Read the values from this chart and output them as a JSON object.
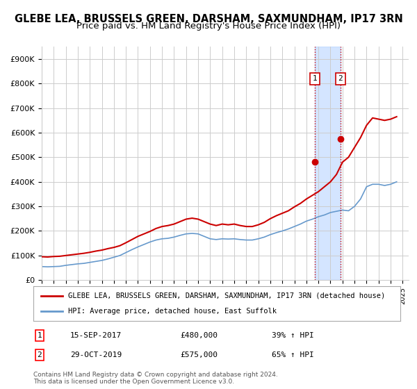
{
  "title": "GLEBE LEA, BRUSSELS GREEN, DARSHAM, SAXMUNDHAM, IP17 3RN",
  "subtitle": "Price paid vs. HM Land Registry's House Price Index (HPI)",
  "title_fontsize": 10.5,
  "subtitle_fontsize": 9.5,
  "hpi_years": [
    1995,
    1995.5,
    1996,
    1996.5,
    1997,
    1997.5,
    1998,
    1998.5,
    1999,
    1999.5,
    2000,
    2000.5,
    2001,
    2001.5,
    2002,
    2002.5,
    2003,
    2003.5,
    2004,
    2004.5,
    2005,
    2005.5,
    2006,
    2006.5,
    2007,
    2007.5,
    2008,
    2008.5,
    2009,
    2009.5,
    2010,
    2010.5,
    2011,
    2011.5,
    2012,
    2012.5,
    2013,
    2013.5,
    2014,
    2014.5,
    2015,
    2015.5,
    2016,
    2016.5,
    2017,
    2017.5,
    2018,
    2018.5,
    2019,
    2019.5,
    2020,
    2020.5,
    2021,
    2021.5,
    2022,
    2022.5,
    2023,
    2023.5,
    2024,
    2024.5
  ],
  "hpi_values": [
    55000,
    54000,
    55000,
    56000,
    60000,
    63000,
    66000,
    68000,
    72000,
    76000,
    80000,
    86000,
    93000,
    100000,
    112000,
    124000,
    135000,
    145000,
    155000,
    163000,
    168000,
    170000,
    175000,
    182000,
    188000,
    190000,
    188000,
    178000,
    168000,
    165000,
    168000,
    167000,
    168000,
    165000,
    163000,
    163000,
    168000,
    175000,
    185000,
    193000,
    200000,
    208000,
    218000,
    228000,
    240000,
    248000,
    258000,
    265000,
    275000,
    280000,
    285000,
    282000,
    300000,
    330000,
    380000,
    390000,
    390000,
    385000,
    390000,
    400000
  ],
  "price_years": [
    1995,
    1995.5,
    1996,
    1996.5,
    1997,
    1997.5,
    1998,
    1998.5,
    1999,
    1999.5,
    2000,
    2000.5,
    2001,
    2001.5,
    2002,
    2002.5,
    2003,
    2003.5,
    2004,
    2004.5,
    2005,
    2005.5,
    2006,
    2006.5,
    2007,
    2007.5,
    2008,
    2008.5,
    2009,
    2009.5,
    2010,
    2010.5,
    2011,
    2011.5,
    2012,
    2012.5,
    2013,
    2013.5,
    2014,
    2014.5,
    2015,
    2015.5,
    2016,
    2016.5,
    2017,
    2017.5,
    2018,
    2018.5,
    2019,
    2019.5,
    2020,
    2020.5,
    2021,
    2021.5,
    2022,
    2022.5,
    2023,
    2023.5,
    2024,
    2024.5
  ],
  "price_values": [
    95000,
    94000,
    96000,
    97000,
    100000,
    103000,
    106000,
    109000,
    113000,
    118000,
    122000,
    128000,
    133000,
    140000,
    152000,
    165000,
    178000,
    188000,
    198000,
    210000,
    218000,
    222000,
    228000,
    238000,
    248000,
    252000,
    248000,
    238000,
    228000,
    222000,
    228000,
    225000,
    228000,
    222000,
    218000,
    218000,
    225000,
    235000,
    250000,
    262000,
    272000,
    282000,
    298000,
    312000,
    330000,
    345000,
    360000,
    380000,
    400000,
    430000,
    480000,
    500000,
    540000,
    580000,
    630000,
    660000,
    655000,
    650000,
    655000,
    665000
  ],
  "sale1_year": 2017.71,
  "sale1_price": 480000,
  "sale1_label": "1",
  "sale1_date": "15-SEP-2017",
  "sale1_pct": "39%",
  "sale2_year": 2019.83,
  "sale2_price": 575000,
  "sale2_label": "2",
  "sale2_date": "29-OCT-2019",
  "sale2_pct": "65%",
  "highlight_x1": 2017.71,
  "highlight_x2": 2019.83,
  "price_color": "#cc0000",
  "hpi_color": "#6699cc",
  "highlight_color": "#aaccff",
  "highlight_alpha": 0.3,
  "vline_color": "#cc0000",
  "ylim": [
    0,
    950000
  ],
  "yticks": [
    0,
    100000,
    200000,
    300000,
    400000,
    500000,
    600000,
    700000,
    800000,
    900000
  ],
  "xlim": [
    1995,
    2025.5
  ],
  "xticks": [
    1995,
    1996,
    1997,
    1998,
    1999,
    2000,
    2001,
    2002,
    2003,
    2004,
    2005,
    2006,
    2007,
    2008,
    2009,
    2010,
    2011,
    2012,
    2013,
    2014,
    2015,
    2016,
    2017,
    2018,
    2019,
    2020,
    2021,
    2022,
    2023,
    2024,
    2025
  ],
  "legend1_label": "GLEBE LEA, BRUSSELS GREEN, DARSHAM, SAXMUNDHAM, IP17 3RN (detached house)",
  "legend2_label": "HPI: Average price, detached house, East Suffolk",
  "footnote": "Contains HM Land Registry data © Crown copyright and database right 2024.\nThis data is licensed under the Open Government Licence v3.0.",
  "footnote_fontsize": 6.5,
  "bg_color": "#ffffff",
  "grid_color": "#cccccc"
}
